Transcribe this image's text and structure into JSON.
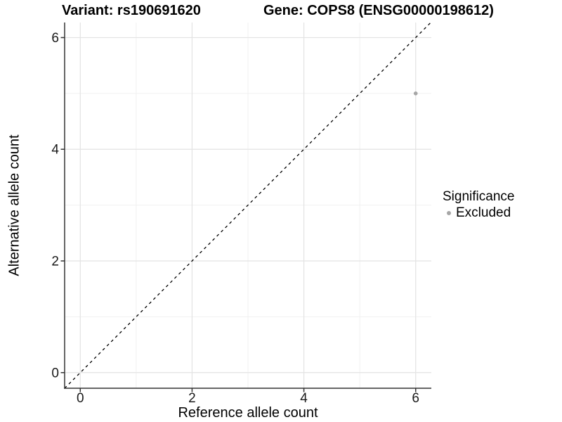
{
  "chart_data": {
    "type": "scatter",
    "title_variant": "Variant: rs190691620",
    "title_gene": "Gene: COPS8 (ENSG00000198612)",
    "xlabel": "Reference allele count",
    "ylabel": "Alternative allele count",
    "xlim": [
      -0.28,
      6.28
    ],
    "ylim": [
      -0.28,
      6.27
    ],
    "xticks": [
      0,
      2,
      4,
      6
    ],
    "yticks": [
      0,
      2,
      4,
      6
    ],
    "xtick_labels": [
      "0",
      "2",
      "4",
      "6"
    ],
    "ytick_labels": [
      "0",
      "2",
      "4",
      "6"
    ],
    "grid": {
      "on": true,
      "minor_x": [
        1,
        3,
        5
      ],
      "minor_y": [
        1,
        3,
        5
      ]
    },
    "reference_line": {
      "kind": "identity y=x",
      "style": "dashed",
      "color": "#000000"
    },
    "series": [
      {
        "name": "Excluded",
        "color": "#a6a6a6",
        "points": [
          {
            "x": 6,
            "y": 5
          }
        ]
      }
    ],
    "legend": {
      "title": "Significance",
      "position": "right",
      "items": [
        {
          "label": "Excluded",
          "color": "#a6a6a6"
        }
      ]
    },
    "colors": {
      "background": "#ffffff",
      "grid_major": "#e3e3e3",
      "grid_minor": "#f0f0f0",
      "axis": "#333333",
      "tick_text": "#1a1a1a"
    }
  }
}
